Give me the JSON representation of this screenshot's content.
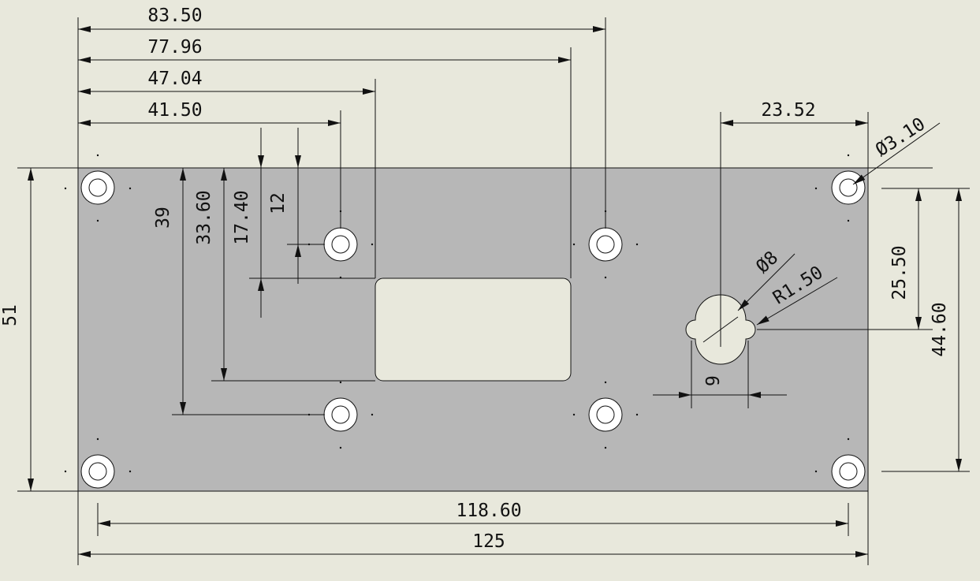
{
  "drawing": {
    "colors": {
      "background": "#e8e8dc",
      "plate": "#b7b7b7",
      "line": "#111111",
      "hole_fill": "#ffffff"
    },
    "dimensions": {
      "d_83_50": "83.50",
      "d_77_96": "77.96",
      "d_47_04": "47.04",
      "d_41_50": "41.50",
      "d_23_52": "23.52",
      "d_phi_3_10": "Ø3.10",
      "d_phi_8": "Ø8",
      "d_r_1_50": "R1.50",
      "d_39": "39",
      "d_33_60": "33.60",
      "d_17_40": "17.40",
      "d_12": "12",
      "d_51": "51",
      "d_25_50": "25.50",
      "d_44_60": "44.60",
      "d_9": "9",
      "d_118_60": "118.60",
      "d_125": "125"
    }
  }
}
